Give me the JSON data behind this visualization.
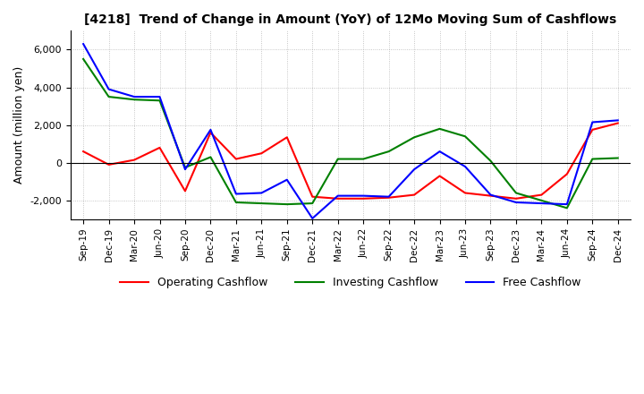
{
  "title": "[4218]  Trend of Change in Amount (YoY) of 12Mo Moving Sum of Cashflows",
  "ylabel": "Amount (million yen)",
  "x_labels": [
    "Sep-19",
    "Dec-19",
    "Mar-20",
    "Jun-20",
    "Sep-20",
    "Dec-20",
    "Mar-21",
    "Jun-21",
    "Sep-21",
    "Dec-21",
    "Mar-22",
    "Jun-22",
    "Sep-22",
    "Dec-22",
    "Mar-23",
    "Jun-23",
    "Sep-23",
    "Dec-23",
    "Mar-24",
    "Jun-24",
    "Sep-24",
    "Dec-24"
  ],
  "operating": [
    600,
    -100,
    150,
    800,
    -1500,
    1600,
    200,
    500,
    1350,
    -1800,
    -1900,
    -1900,
    -1850,
    -1700,
    -700,
    -1600,
    -1750,
    -1900,
    -1700,
    -600,
    1750,
    2100
  ],
  "investing": [
    5500,
    3500,
    3350,
    3300,
    -250,
    300,
    -2100,
    -2150,
    -2200,
    -2150,
    200,
    200,
    600,
    1350,
    1800,
    1400,
    100,
    -1600,
    -2000,
    -2400,
    200,
    250
  ],
  "free": [
    6300,
    3900,
    3500,
    3500,
    -350,
    1750,
    -1650,
    -1600,
    -900,
    -2950,
    -1750,
    -1750,
    -1800,
    -350,
    600,
    -200,
    -1700,
    -2100,
    -2150,
    -2200,
    2150,
    2250
  ],
  "operating_color": "#ff0000",
  "investing_color": "#008000",
  "free_color": "#0000ff",
  "ylim": [
    -3000,
    7000
  ],
  "yticks": [
    -2000,
    0,
    2000,
    4000,
    6000
  ],
  "background_color": "#ffffff",
  "grid_color": "#999999"
}
